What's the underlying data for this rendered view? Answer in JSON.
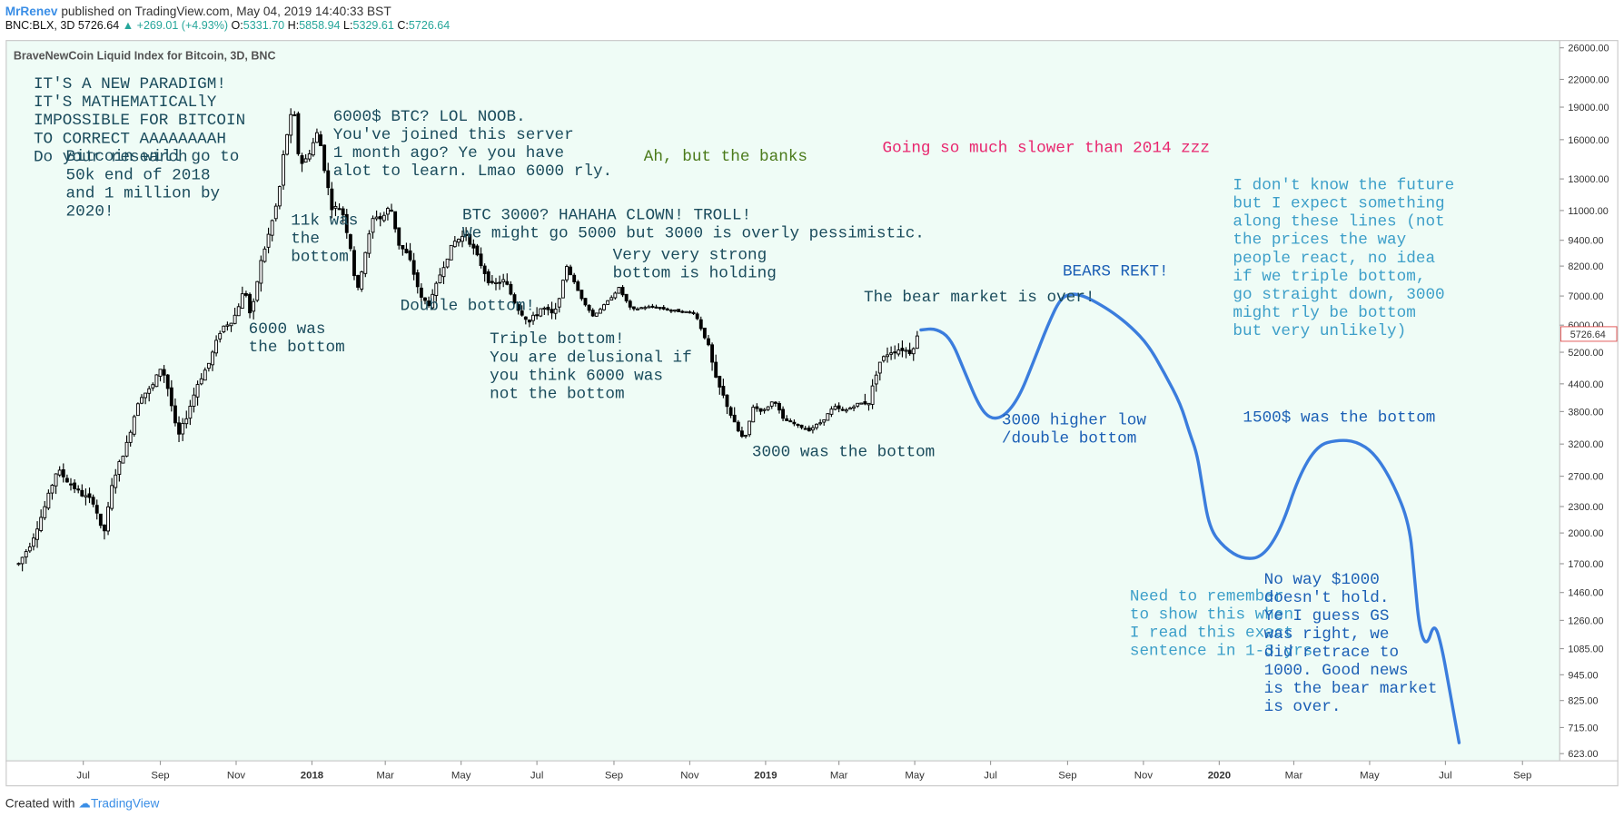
{
  "header": {
    "author": "MrRenev",
    "published": "published on TradingView.com, May 04, 2019 14:40:33 BST",
    "symbol": "BNC:BLX, 3D",
    "last": "5726.64",
    "change": "+269.01 (+4.93%)",
    "open_label": "O:",
    "open": "5331.70",
    "high_label": "H:",
    "high": "5858.94",
    "low_label": "L:",
    "low": "5329.61",
    "close_label": "C:",
    "close": "5726.64"
  },
  "footer": {
    "created_with": "Created with",
    "brand": "TradingView"
  },
  "colors": {
    "background": "#effcf6",
    "candle_up": "#ffffff",
    "candle_down": "#000000",
    "projection": "#3b7ddd",
    "note_dark": "#1a4b5c",
    "note_blue": "#1b5fb5",
    "note_light": "#3d9fc9",
    "note_green": "#4a7a1a",
    "note_pink": "#e8266e"
  },
  "chart_data": {
    "type": "line",
    "title": "BraveNewCoin Liquid Index for Bitcoin, 3D, BNC",
    "y_scale": "log",
    "ylim": [
      623,
      26000
    ],
    "y_ticks": [
      "26000.00",
      "22000.00",
      "19000.00",
      "16000.00",
      "13000.00",
      "11000.00",
      "9400.00",
      "8200.00",
      "7000.00",
      "6000.00",
      "5200.00",
      "4400.00",
      "3800.00",
      "3200.00",
      "2700.00",
      "2300.00",
      "2000.00",
      "1700.00",
      "1460.00",
      "1260.00",
      "1085.00",
      "945.00",
      "825.00",
      "715.00",
      "623.00"
    ],
    "last_price_label": "5726.64",
    "last_price": 5726.64,
    "x_ticks": [
      {
        "label": "Jul",
        "date": "2017-07-01"
      },
      {
        "label": "Sep",
        "date": "2017-09-01"
      },
      {
        "label": "Nov",
        "date": "2017-11-01"
      },
      {
        "label": "2018",
        "date": "2018-01-01",
        "bold": true
      },
      {
        "label": "Mar",
        "date": "2018-03-01"
      },
      {
        "label": "May",
        "date": "2018-05-01"
      },
      {
        "label": "Jul",
        "date": "2018-07-01"
      },
      {
        "label": "Sep",
        "date": "2018-09-01"
      },
      {
        "label": "Nov",
        "date": "2018-11-01"
      },
      {
        "label": "2019",
        "date": "2019-01-01",
        "bold": true
      },
      {
        "label": "Mar",
        "date": "2019-03-01"
      },
      {
        "label": "May",
        "date": "2019-05-01"
      },
      {
        "label": "Jul",
        "date": "2019-07-01"
      },
      {
        "label": "Sep",
        "date": "2019-09-01"
      },
      {
        "label": "Nov",
        "date": "2019-11-01"
      },
      {
        "label": "2020",
        "date": "2020-01-01",
        "bold": true
      },
      {
        "label": "Mar",
        "date": "2020-03-01"
      },
      {
        "label": "May",
        "date": "2020-05-01"
      },
      {
        "label": "Jul",
        "date": "2020-07-01"
      },
      {
        "label": "Sep",
        "date": "2020-09-01"
      }
    ],
    "series": [
      {
        "name": "BLX 3D",
        "kind": "candles",
        "points": [
          [
            "2017-05-10",
            1700
          ],
          [
            "2017-05-20",
            1900
          ],
          [
            "2017-05-30",
            2250
          ],
          [
            "2017-06-10",
            2800
          ],
          [
            "2017-06-20",
            2600
          ],
          [
            "2017-06-30",
            2450
          ],
          [
            "2017-07-10",
            2350
          ],
          [
            "2017-07-17",
            1950
          ],
          [
            "2017-07-25",
            2650
          ],
          [
            "2017-08-05",
            3200
          ],
          [
            "2017-08-15",
            4100
          ],
          [
            "2017-08-25",
            4300
          ],
          [
            "2017-09-02",
            4850
          ],
          [
            "2017-09-08",
            4200
          ],
          [
            "2017-09-15",
            3300
          ],
          [
            "2017-09-22",
            3700
          ],
          [
            "2017-10-01",
            4400
          ],
          [
            "2017-10-10",
            4900
          ],
          [
            "2017-10-20",
            5900
          ],
          [
            "2017-10-30",
            6200
          ],
          [
            "2017-11-08",
            7300
          ],
          [
            "2017-11-13",
            6200
          ],
          [
            "2017-11-20",
            8200
          ],
          [
            "2017-11-28",
            9900
          ],
          [
            "2017-12-05",
            11800
          ],
          [
            "2017-12-10",
            15500
          ],
          [
            "2017-12-17",
            19200
          ],
          [
            "2017-12-22",
            14000
          ],
          [
            "2017-12-28",
            14500
          ],
          [
            "2018-01-06",
            16800
          ],
          [
            "2018-01-12",
            13200
          ],
          [
            "2018-01-17",
            11200
          ],
          [
            "2018-01-25",
            11100
          ],
          [
            "2018-02-02",
            8800
          ],
          [
            "2018-02-06",
            7000
          ],
          [
            "2018-02-12",
            8600
          ],
          [
            "2018-02-20",
            10800
          ],
          [
            "2018-02-26",
            10500
          ],
          [
            "2018-03-05",
            11300
          ],
          [
            "2018-03-12",
            9200
          ],
          [
            "2018-03-20",
            8600
          ],
          [
            "2018-03-30",
            6900
          ],
          [
            "2018-04-06",
            6700
          ],
          [
            "2018-04-15",
            8000
          ],
          [
            "2018-04-25",
            9300
          ],
          [
            "2018-05-05",
            9700
          ],
          [
            "2018-05-15",
            8500
          ],
          [
            "2018-05-25",
            7400
          ],
          [
            "2018-06-05",
            7600
          ],
          [
            "2018-06-15",
            6600
          ],
          [
            "2018-06-25",
            6100
          ],
          [
            "2018-07-05",
            6600
          ],
          [
            "2018-07-15",
            6300
          ],
          [
            "2018-07-25",
            8200
          ],
          [
            "2018-08-05",
            7000
          ],
          [
            "2018-08-15",
            6300
          ],
          [
            "2018-08-25",
            6700
          ],
          [
            "2018-09-05",
            7300
          ],
          [
            "2018-09-15",
            6500
          ],
          [
            "2018-09-25",
            6600
          ],
          [
            "2018-10-05",
            6600
          ],
          [
            "2018-10-15",
            6500
          ],
          [
            "2018-10-25",
            6450
          ],
          [
            "2018-11-05",
            6400
          ],
          [
            "2018-11-15",
            5500
          ],
          [
            "2018-11-22",
            4500
          ],
          [
            "2018-11-30",
            4000
          ],
          [
            "2018-12-08",
            3500
          ],
          [
            "2018-12-15",
            3250
          ],
          [
            "2018-12-22",
            3900
          ],
          [
            "2018-12-30",
            3800
          ],
          [
            "2019-01-08",
            4050
          ],
          [
            "2019-01-15",
            3650
          ],
          [
            "2019-01-25",
            3550
          ],
          [
            "2019-02-05",
            3450
          ],
          [
            "2019-02-15",
            3600
          ],
          [
            "2019-02-25",
            3900
          ],
          [
            "2019-03-05",
            3800
          ],
          [
            "2019-03-15",
            3950
          ],
          [
            "2019-03-25",
            4000
          ],
          [
            "2019-04-02",
            4900
          ],
          [
            "2019-04-10",
            5200
          ],
          [
            "2019-04-20",
            5300
          ],
          [
            "2019-04-28",
            5200
          ],
          [
            "2019-05-04",
            5726.64
          ]
        ]
      },
      {
        "name": "Projection",
        "kind": "line",
        "points": [
          [
            "2019-05-06",
            5850
          ],
          [
            "2019-05-18",
            5900
          ],
          [
            "2019-05-30",
            5600
          ],
          [
            "2019-06-10",
            4700
          ],
          [
            "2019-06-22",
            3900
          ],
          [
            "2019-07-01",
            3650
          ],
          [
            "2019-07-12",
            3700
          ],
          [
            "2019-07-24",
            4100
          ],
          [
            "2019-08-04",
            4900
          ],
          [
            "2019-08-16",
            6000
          ],
          [
            "2019-08-26",
            6900
          ],
          [
            "2019-09-04",
            7100
          ],
          [
            "2019-09-14",
            7000
          ],
          [
            "2019-09-25",
            6750
          ],
          [
            "2019-10-08",
            6400
          ],
          [
            "2019-10-22",
            5950
          ],
          [
            "2019-11-05",
            5400
          ],
          [
            "2019-11-18",
            4650
          ],
          [
            "2019-12-01",
            3950
          ],
          [
            "2019-12-08",
            3400
          ],
          [
            "2019-12-14",
            3050
          ],
          [
            "2019-12-18",
            2600
          ],
          [
            "2019-12-24",
            2050
          ],
          [
            "2020-01-05",
            1850
          ],
          [
            "2020-01-20",
            1740
          ],
          [
            "2020-02-05",
            1760
          ],
          [
            "2020-02-20",
            2050
          ],
          [
            "2020-03-05",
            2700
          ],
          [
            "2020-03-20",
            3180
          ],
          [
            "2020-04-05",
            3270
          ],
          [
            "2020-04-20",
            3250
          ],
          [
            "2020-05-05",
            3050
          ],
          [
            "2020-05-20",
            2600
          ],
          [
            "2020-06-02",
            2100
          ],
          [
            "2020-06-06",
            1600
          ],
          [
            "2020-06-10",
            1200
          ],
          [
            "2020-06-16",
            1095
          ],
          [
            "2020-06-22",
            1250
          ],
          [
            "2020-06-28",
            1100
          ],
          [
            "2020-07-05",
            850
          ],
          [
            "2020-07-12",
            660
          ]
        ]
      }
    ],
    "annotations": [
      {
        "id": "paradigm",
        "date": "2017-05-22",
        "price": 21000,
        "color": "note_dark",
        "lines": [
          "IT'S A NEW PARADIGM!",
          "IT'S MATHEMATICALlY",
          "IMPOSSIBLE FOR BITCOIN",
          "TO CORRECT AAAAAAAAH",
          "Do your research"
        ]
      },
      {
        "id": "fifty-k",
        "date": "2017-06-17",
        "price": 14300,
        "color": "note_dark",
        "lines": [
          "Bitcoin will go to",
          "50k end of 2018",
          "and 1 million by",
          "2020!"
        ]
      },
      {
        "id": "lol-noob",
        "date": "2018-01-18",
        "price": 17700,
        "color": "note_dark",
        "lines": [
          "6000$ BTC? LOL NOOB.",
          "You've joined this server",
          "1 month ago? Ye you have",
          "alot to learn. Lmao 6000 rly."
        ]
      },
      {
        "id": "banks",
        "date": "2018-09-25",
        "price": 14300,
        "color": "note_green",
        "lines": [
          "Ah, but the banks"
        ]
      },
      {
        "id": "slower",
        "date": "2019-04-05",
        "price": 15000,
        "color": "note_pink",
        "lines": [
          "Going so much slower than 2014 zzz"
        ]
      },
      {
        "id": "eleven-k",
        "date": "2017-12-15",
        "price": 10200,
        "color": "note_dark",
        "lines": [
          "11k was",
          "the",
          "bottom"
        ]
      },
      {
        "id": "btc-3000",
        "date": "2018-05-02",
        "price": 10500,
        "color": "note_dark",
        "lines": [
          "BTC 3000? HAHAHA CLOWN! TROLL!",
          "We might go 5000 but 3000 is overly pessimistic."
        ]
      },
      {
        "id": "strong-bottom",
        "date": "2018-08-31",
        "price": 8500,
        "color": "note_dark",
        "lines": [
          "Very very strong",
          "bottom is holding"
        ]
      },
      {
        "id": "double-bottom",
        "date": "2018-03-13",
        "price": 6500,
        "color": "note_dark",
        "lines": [
          "Double bottom!"
        ]
      },
      {
        "id": "six-k",
        "date": "2017-11-11",
        "price": 5750,
        "color": "note_dark",
        "lines": [
          "6000 was",
          "the bottom"
        ]
      },
      {
        "id": "triple-bottom",
        "date": "2018-05-24",
        "price": 5450,
        "color": "note_dark",
        "lines": [
          "Triple bottom!",
          "You are delusional if",
          "you think 6000 was",
          "not the bottom"
        ]
      },
      {
        "id": "bear-over",
        "date": "2019-03-21",
        "price": 6800,
        "color": "note_dark",
        "lines": [
          "The bear market is over!"
        ]
      },
      {
        "id": "three-k",
        "date": "2018-12-21",
        "price": 3000,
        "color": "note_dark",
        "lines": [
          "3000 was the bottom"
        ]
      },
      {
        "id": "bears-rekt",
        "date": "2019-08-28",
        "price": 7800,
        "color": "note_blue",
        "lines": [
          "BEARS REKT!"
        ]
      },
      {
        "id": "future",
        "date": "2020-01-12",
        "price": 12300,
        "color": "note_light",
        "lines": [
          "I don't know the future",
          "but I expect something",
          "along these lines (not",
          "the prices the way",
          "people react, no idea",
          "if we triple bottom,",
          "go straight down, 3000",
          "might rly be bottom",
          "but very unlikely)"
        ]
      },
      {
        "id": "higher-low",
        "date": "2019-07-10",
        "price": 3550,
        "color": "note_blue",
        "lines": [
          "3000 higher low",
          "/double bottom"
        ]
      },
      {
        "id": "fifteen-hundred",
        "date": "2020-01-20",
        "price": 3600,
        "color": "note_blue",
        "lines": [
          "1500$ was the bottom"
        ]
      },
      {
        "id": "remember",
        "date": "2019-10-21",
        "price": 1400,
        "color": "note_light",
        "lines": [
          "Need to remember",
          "to show this when",
          "I read this exact",
          "sentence in 1-3 yrs"
        ]
      },
      {
        "id": "no-way",
        "date": "2020-02-06",
        "price": 1530,
        "color": "note_blue",
        "lines": [
          "No way $1000",
          "doesn't hold.",
          "Ye I guess GS",
          "was right, we",
          "did retrace to",
          "1000. Good news",
          "is the bear market",
          "is over."
        ]
      }
    ]
  }
}
